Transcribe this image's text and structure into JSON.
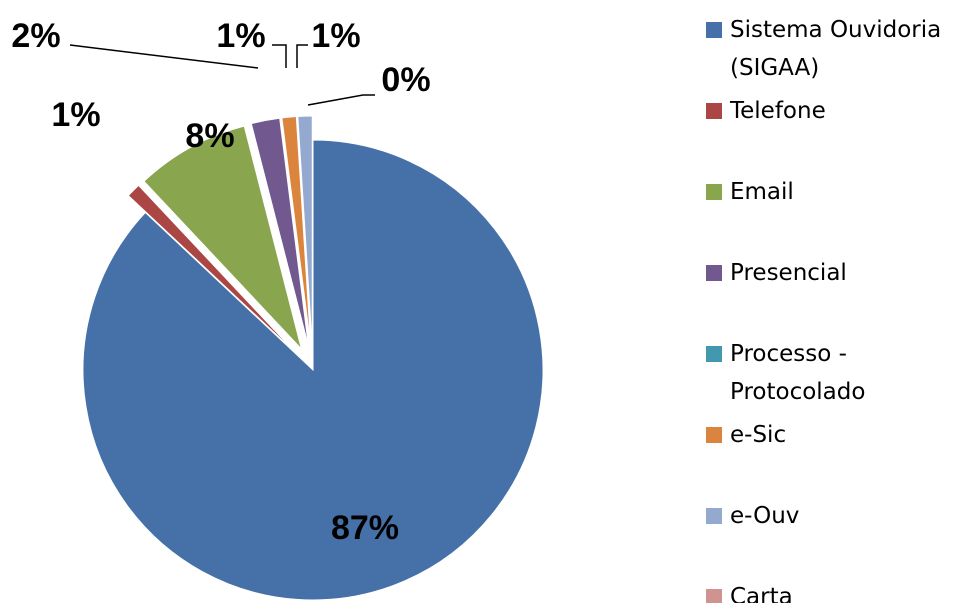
{
  "chart_data": {
    "type": "pie",
    "categories": [
      "Sistema Ouvidoria (SIGAA)",
      "Telefone",
      "Email",
      "Presencial",
      "Processo - Protocolado",
      "e-Sic",
      "e-Ouv",
      "Carta"
    ],
    "values": [
      87,
      1,
      8,
      2,
      0,
      1,
      1,
      0
    ],
    "value_labels": [
      "87%",
      "1%",
      "8%",
      "2%",
      null,
      "1%",
      "1%",
      "0%"
    ],
    "colors": [
      "#4571a8",
      "#aa4643",
      "#89a54e",
      "#71588f",
      "#4198af",
      "#db843d",
      "#93a9cf",
      "#d19392"
    ],
    "legend": "right"
  }
}
